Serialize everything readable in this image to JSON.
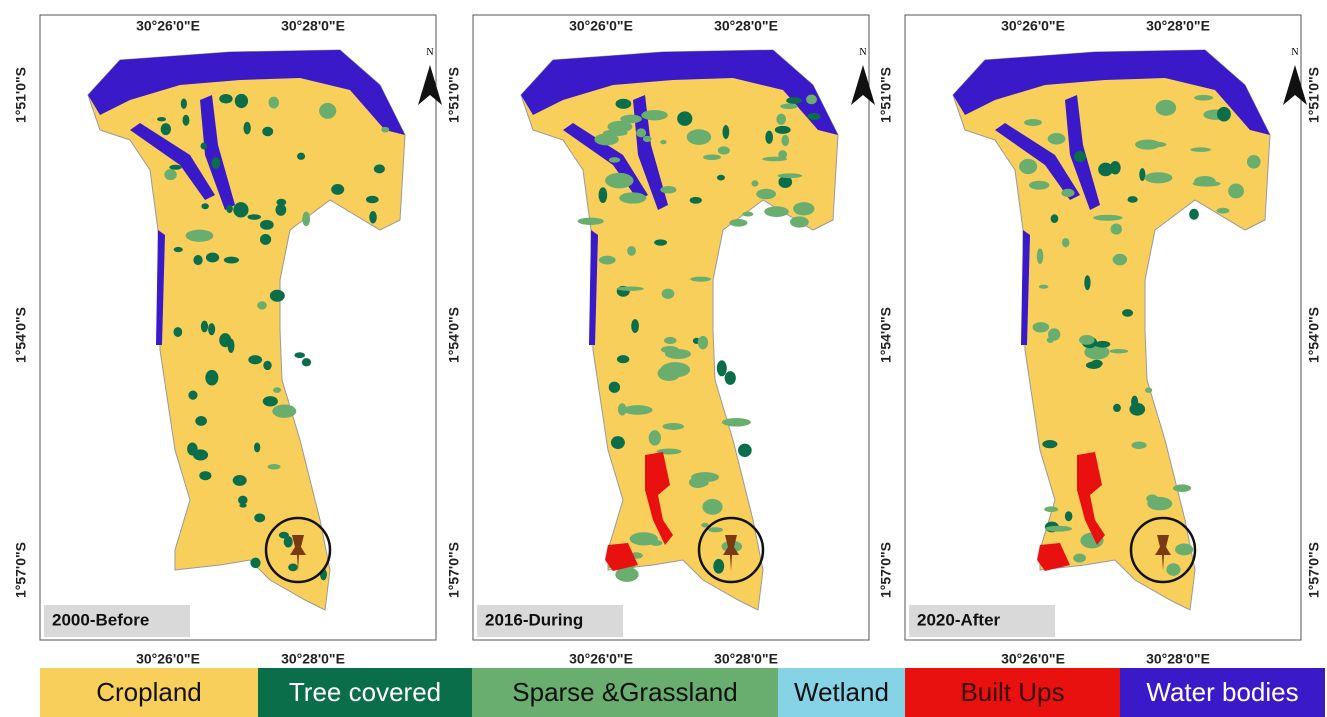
{
  "panels": [
    {
      "label": "2000-Before",
      "top_ticks": [
        "30°26'0\"E",
        "30°28'0\"E"
      ],
      "bottom_ticks": [
        "30°26'0\"E",
        "30°28'0\"E"
      ],
      "left_ticks": [
        "1°51'0\"S",
        "1°54'0\"S",
        "1°57'0\"S"
      ],
      "north": "N"
    },
    {
      "label": "2016-During",
      "top_ticks": [
        "30°26'0\"E",
        "30°28'0\"E"
      ],
      "bottom_ticks": [
        "30°26'0\"E",
        "30°28'0\"E"
      ],
      "left_ticks": [
        "1°51'0\"S",
        "1°54'0\"S",
        "1°57'0\"S"
      ],
      "north": "N"
    },
    {
      "label": "2020-After",
      "top_ticks": [
        "30°26'0\"E",
        "30°28'0\"E"
      ],
      "bottom_ticks": [
        "30°26'0\"E",
        "30°28'0\"E"
      ],
      "left_ticks": [
        "1°51'0\"S",
        "1°54'0\"S",
        "1°57'0\"S"
      ],
      "right_ticks": [
        "1°51'0\"S",
        "1°54'0\"S",
        "1°57'0\"S"
      ],
      "north": "N"
    }
  ],
  "legend": {
    "items": [
      {
        "label": "Cropland",
        "color": "#f9cf5b",
        "text_color": "#111111"
      },
      {
        "label": "Tree covered",
        "color": "#0b6e4a",
        "text_color": "#ffffff"
      },
      {
        "label": "Sparse &Grassland",
        "color": "#6aae6f",
        "text_color": "#111111"
      },
      {
        "label": "Wetland",
        "color": "#87d3e6",
        "text_color": "#111111"
      },
      {
        "label": "Built Ups",
        "color": "#e8110f",
        "text_color": "#3a0a0a"
      },
      {
        "label": "Water bodies",
        "color": "#3a19c8",
        "text_color": "#ffffff"
      }
    ]
  }
}
